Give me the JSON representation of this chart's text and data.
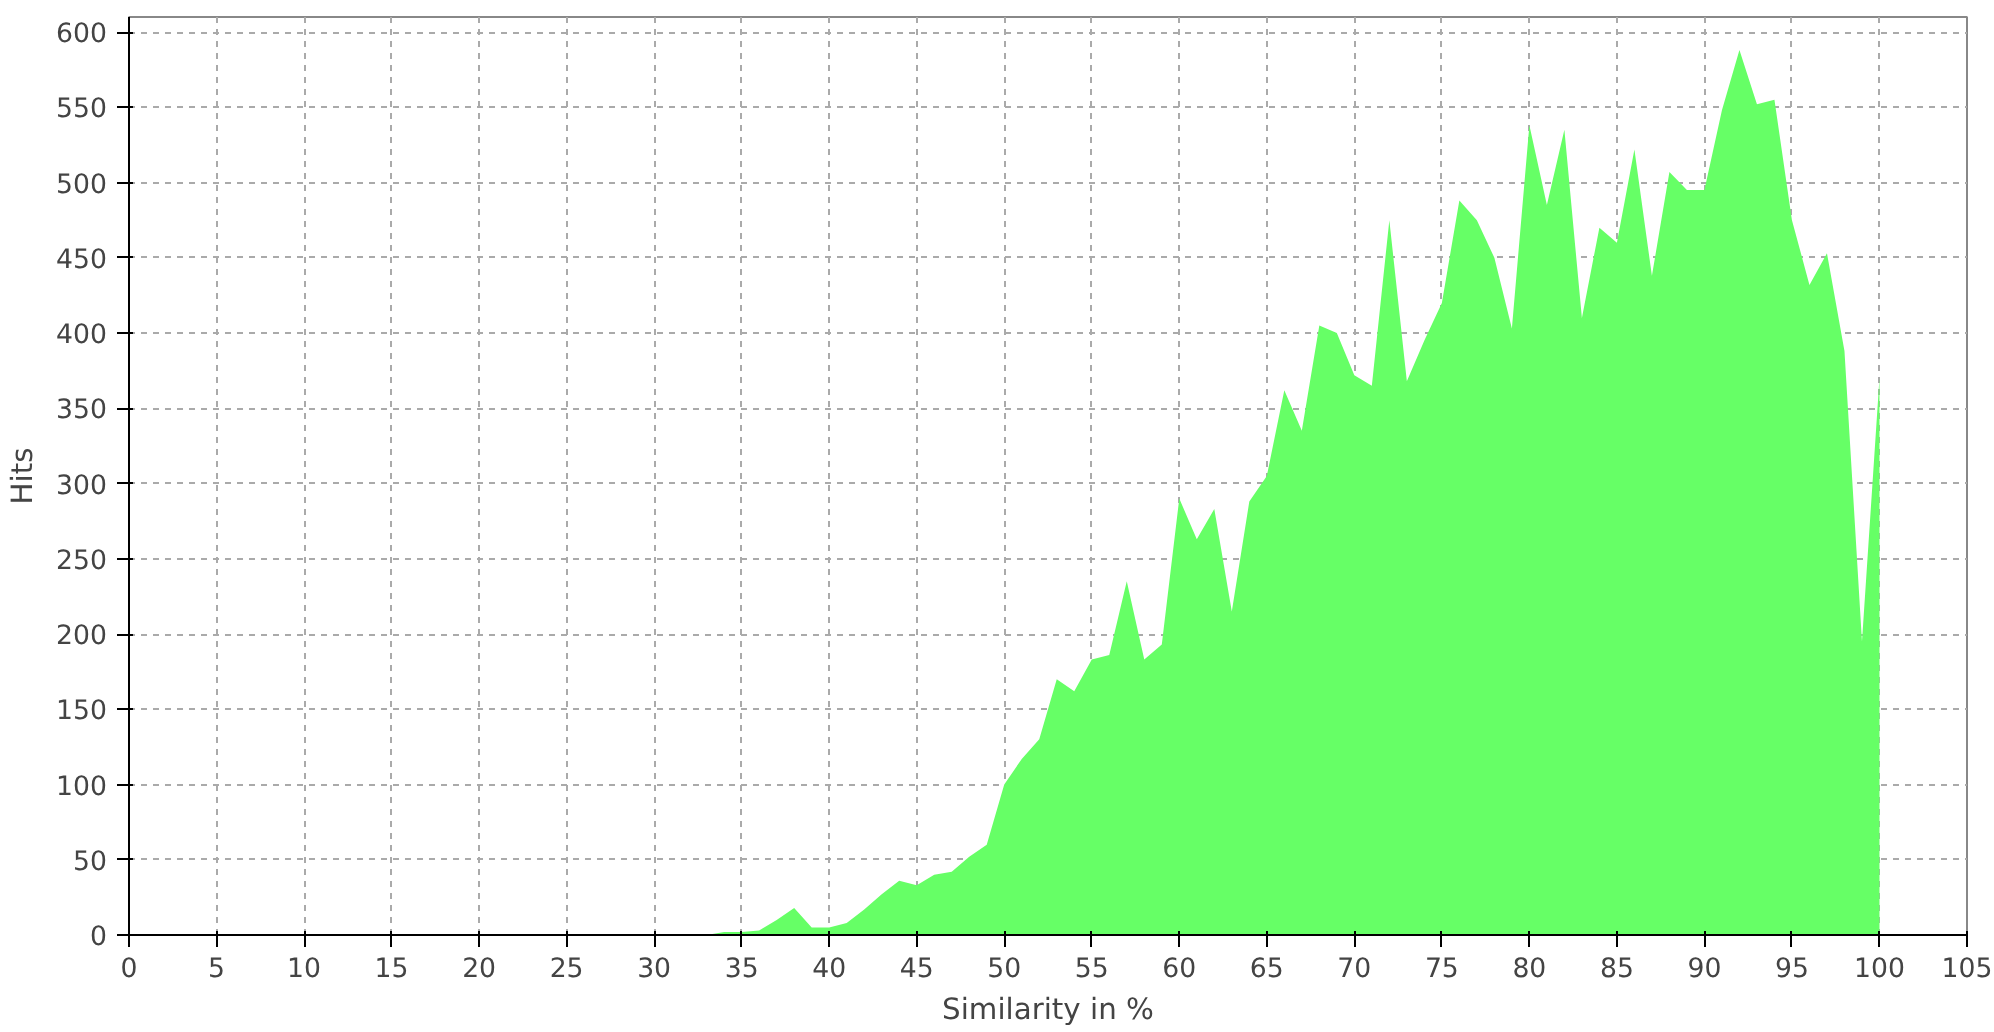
{
  "chart_data": {
    "type": "area",
    "xlabel": "Similarity in %",
    "ylabel": "Hits",
    "x": [
      0,
      1,
      2,
      3,
      4,
      5,
      6,
      7,
      8,
      9,
      10,
      11,
      12,
      13,
      14,
      15,
      16,
      17,
      18,
      19,
      20,
      21,
      22,
      23,
      24,
      25,
      26,
      27,
      28,
      29,
      30,
      31,
      32,
      33,
      34,
      35,
      36,
      37,
      38,
      39,
      40,
      41,
      42,
      43,
      44,
      45,
      46,
      47,
      48,
      49,
      50,
      51,
      52,
      53,
      54,
      55,
      56,
      57,
      58,
      59,
      60,
      61,
      62,
      63,
      64,
      65,
      66,
      67,
      68,
      69,
      70,
      71,
      72,
      73,
      74,
      75,
      76,
      77,
      78,
      79,
      80,
      81,
      82,
      83,
      84,
      85,
      86,
      87,
      88,
      89,
      90,
      91,
      92,
      93,
      94,
      95,
      96,
      97,
      98,
      99,
      100
    ],
    "series": [
      {
        "color": "#66ff66",
        "values": [
          0,
          0,
          0,
          0,
          0,
          0,
          0,
          0,
          0,
          0,
          0,
          0,
          0,
          0,
          0,
          0,
          0,
          0,
          0,
          0,
          0,
          0,
          0,
          0,
          0,
          0,
          0,
          0,
          0,
          0,
          0,
          0,
          0,
          0,
          2,
          2,
          3,
          10,
          18,
          5,
          5,
          8,
          17,
          27,
          36,
          33,
          40,
          42,
          52,
          60,
          100,
          117,
          130,
          170,
          162,
          183,
          186,
          235,
          183,
          193,
          290,
          263,
          283,
          215,
          288,
          305,
          362,
          335,
          405,
          400,
          372,
          365,
          475,
          368,
          395,
          420,
          488,
          475,
          450,
          403,
          538,
          485,
          535,
          410,
          470,
          460,
          522,
          438,
          507,
          495,
          495,
          548,
          588,
          552,
          555,
          475,
          432,
          453,
          388,
          195,
          370
        ]
      }
    ],
    "xlim": [
      0,
      105
    ],
    "xticks": [
      0,
      5,
      10,
      15,
      20,
      25,
      30,
      35,
      40,
      45,
      50,
      55,
      60,
      65,
      70,
      75,
      80,
      85,
      90,
      95,
      100,
      105
    ],
    "ylim": [
      0,
      610
    ],
    "yticks": [
      0,
      50,
      100,
      150,
      200,
      250,
      300,
      350,
      400,
      450,
      500,
      550,
      600
    ],
    "grid": true
  }
}
